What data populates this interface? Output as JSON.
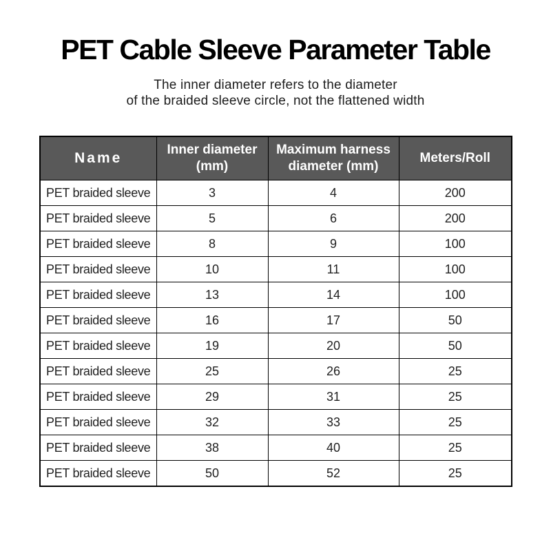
{
  "header": {
    "title": "PET Cable Sleeve Parameter Table",
    "subtitle": "The inner diameter refers to the diameter\nof the braided sleeve circle, not the flattened width"
  },
  "table": {
    "header_bg_color": "#595959",
    "header_text_color": "#ffffff",
    "border_color": "#000000",
    "columns": [
      "Name",
      "Inner diameter\n(mm)",
      "Maximum harness\ndiameter (mm)",
      "Meters/Roll"
    ],
    "rows": [
      {
        "name": "PET braided sleeve",
        "inner_diameter_mm": "3",
        "max_harness_diameter_mm": "4",
        "meters_per_roll": "200"
      },
      {
        "name": "PET braided sleeve",
        "inner_diameter_mm": "5",
        "max_harness_diameter_mm": "6",
        "meters_per_roll": "200"
      },
      {
        "name": "PET braided sleeve",
        "inner_diameter_mm": "8",
        "max_harness_diameter_mm": "9",
        "meters_per_roll": "100"
      },
      {
        "name": "PET braided sleeve",
        "inner_diameter_mm": "10",
        "max_harness_diameter_mm": "11",
        "meters_per_roll": "100"
      },
      {
        "name": "PET braided sleeve",
        "inner_diameter_mm": "13",
        "max_harness_diameter_mm": "14",
        "meters_per_roll": "100"
      },
      {
        "name": "PET braided sleeve",
        "inner_diameter_mm": "16",
        "max_harness_diameter_mm": "17",
        "meters_per_roll": "50"
      },
      {
        "name": "PET braided sleeve",
        "inner_diameter_mm": "19",
        "max_harness_diameter_mm": "20",
        "meters_per_roll": "50"
      },
      {
        "name": "PET braided sleeve",
        "inner_diameter_mm": "25",
        "max_harness_diameter_mm": "26",
        "meters_per_roll": "25"
      },
      {
        "name": "PET braided sleeve",
        "inner_diameter_mm": "29",
        "max_harness_diameter_mm": "31",
        "meters_per_roll": "25"
      },
      {
        "name": "PET braided sleeve",
        "inner_diameter_mm": "32",
        "max_harness_diameter_mm": "33",
        "meters_per_roll": "25"
      },
      {
        "name": "PET braided sleeve",
        "inner_diameter_mm": "38",
        "max_harness_diameter_mm": "40",
        "meters_per_roll": "25"
      },
      {
        "name": "PET braided sleeve",
        "inner_diameter_mm": "50",
        "max_harness_diameter_mm": "52",
        "meters_per_roll": "25"
      }
    ]
  },
  "chart_data": {
    "type": "table",
    "title": "PET Cable Sleeve Parameter Table",
    "columns": [
      "Name",
      "Inner diameter (mm)",
      "Maximum harness diameter (mm)",
      "Meters/Roll"
    ],
    "rows": [
      [
        "PET braided sleeve",
        3,
        4,
        200
      ],
      [
        "PET braided sleeve",
        5,
        6,
        200
      ],
      [
        "PET braided sleeve",
        8,
        9,
        100
      ],
      [
        "PET braided sleeve",
        10,
        11,
        100
      ],
      [
        "PET braided sleeve",
        13,
        14,
        100
      ],
      [
        "PET braided sleeve",
        16,
        17,
        50
      ],
      [
        "PET braided sleeve",
        19,
        20,
        50
      ],
      [
        "PET braided sleeve",
        25,
        26,
        25
      ],
      [
        "PET braided sleeve",
        29,
        31,
        25
      ],
      [
        "PET braided sleeve",
        32,
        33,
        25
      ],
      [
        "PET braided sleeve",
        38,
        40,
        25
      ],
      [
        "PET braided sleeve",
        50,
        52,
        25
      ]
    ]
  }
}
